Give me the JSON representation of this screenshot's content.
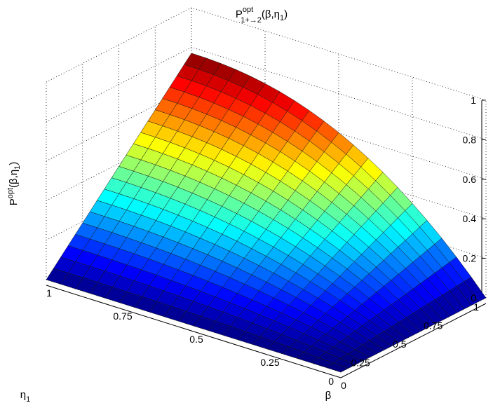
{
  "chart_data": {
    "type": "surface",
    "title": {
      "base": "P",
      "sup": "opt",
      "sub": "1+→2",
      "args": "(β,η",
      "args_sub": "1",
      "args_end": ")"
    },
    "zlabel": {
      "base": "P",
      "sup": "opt",
      "args": "(β,η",
      "args_sub": "1",
      "args_end": ")"
    },
    "xlabel": "β",
    "ylabel": {
      "base": "η",
      "sub": "1"
    },
    "xlim": [
      0,
      1
    ],
    "ylim": [
      0,
      1
    ],
    "zlim": [
      0,
      1
    ],
    "x_ticks": [
      "0",
      "0.25",
      "0.5",
      "0.75",
      "1"
    ],
    "y_ticks": [
      "0",
      "0.25",
      "0.5",
      "0.75",
      "1"
    ],
    "z_ticks": [
      "0",
      "0.2",
      "0.4",
      "0.6",
      "0.8",
      "1"
    ],
    "grid": true,
    "colormap": "jet",
    "corner_values": {
      "beta0_eta0": 0,
      "beta0_eta1": 0,
      "beta1_eta0": 0,
      "beta1_eta1": 0.77
    },
    "edge_eta1": {
      "beta": [
        0,
        0.25,
        0.5,
        0.75,
        1
      ],
      "p": [
        0,
        0.43,
        0.64,
        0.75,
        0.77
      ]
    },
    "edge_beta1": {
      "eta": [
        0,
        0.25,
        0.5,
        0.75,
        1
      ],
      "p": [
        0,
        0.17,
        0.37,
        0.58,
        0.77
      ]
    }
  }
}
